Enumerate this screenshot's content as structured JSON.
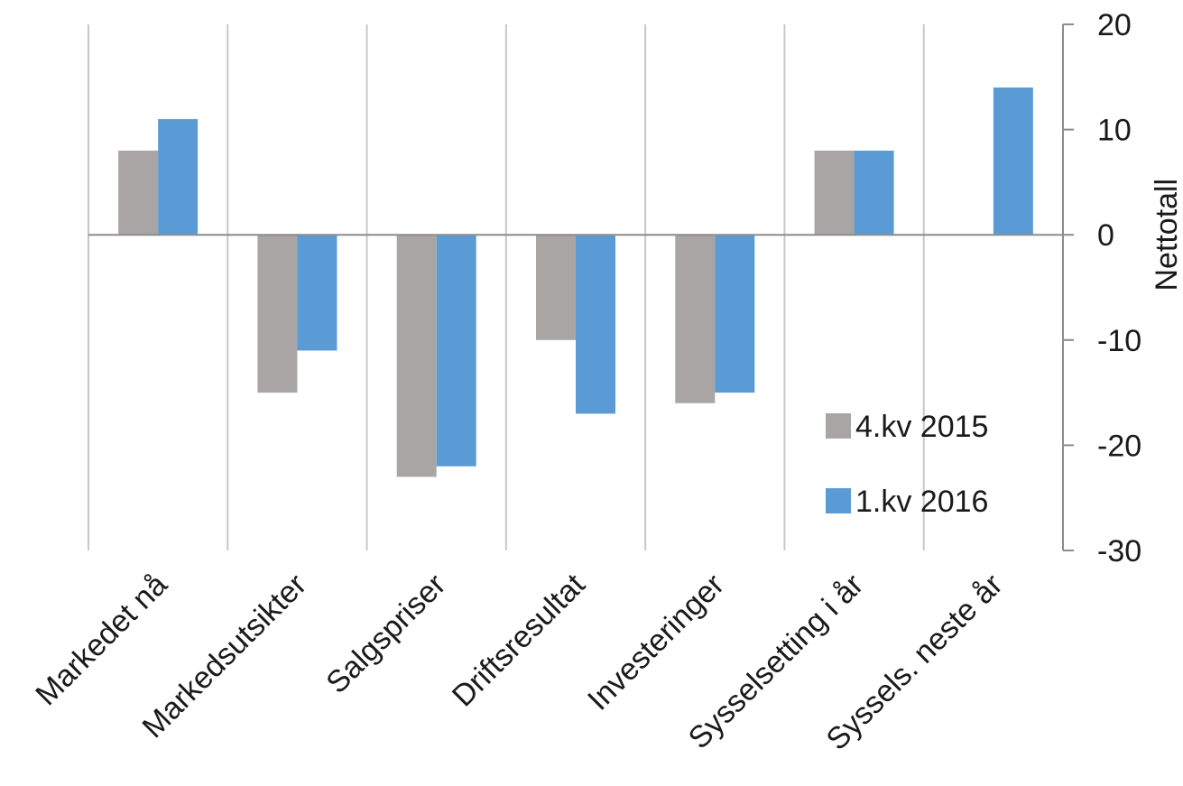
{
  "chart_data": {
    "type": "bar",
    "categories": [
      "Markedet nå",
      "Markedsutsikter",
      "Salgspriser",
      "Driftsresultat",
      "Investeringer",
      "Sysselsetting i år",
      "Syssels. neste år"
    ],
    "series": [
      {
        "name": "4.kv 2015",
        "color": "#a9a5a4",
        "values": [
          8,
          -15,
          -23,
          -10,
          -16,
          8,
          null
        ]
      },
      {
        "name": "1.kv 2016",
        "color": "#5b9bd5",
        "values": [
          11,
          -11,
          -22,
          -17,
          -15,
          8,
          14
        ]
      }
    ],
    "ylabel": "Nettotall",
    "ylim": [
      -30,
      20
    ],
    "yticks": [
      20,
      10,
      0,
      -10,
      -20,
      -30
    ],
    "y_axis_side": "right",
    "grid": "vertical category separators",
    "legend_position": "inside-right"
  }
}
